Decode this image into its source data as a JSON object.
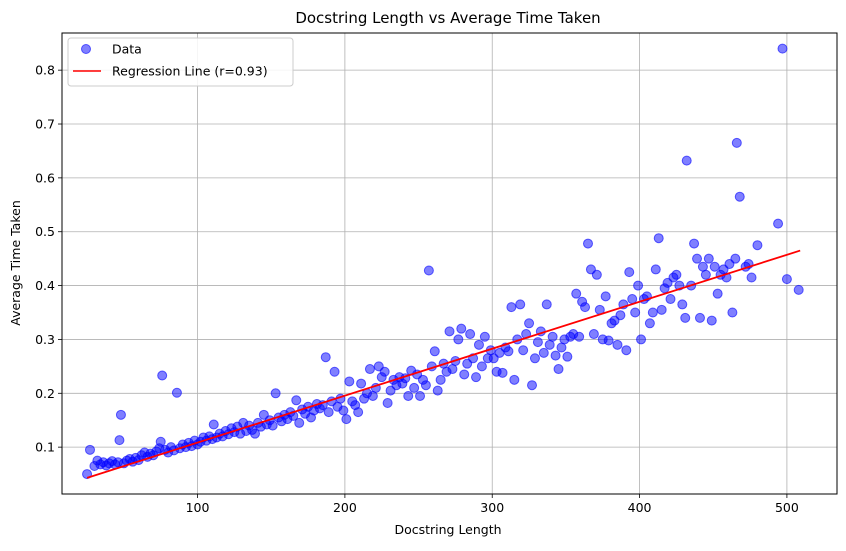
{
  "chart_data": {
    "type": "scatter",
    "title": "Docstring Length vs Average Time Taken",
    "xlabel": "Docstring Length",
    "ylabel": "Average Time Taken",
    "xlim": [
      8,
      534
    ],
    "ylim": [
      0.013,
      0.869
    ],
    "xticks": [
      100,
      200,
      300,
      400,
      500
    ],
    "yticks": [
      0.1,
      0.2,
      0.3,
      0.4,
      0.5,
      0.6,
      0.7,
      0.8
    ],
    "grid": true,
    "legend_position": "top-left",
    "colors": {
      "points": "#0000ff",
      "line": "#ff0000"
    },
    "series": [
      {
        "name": "Data",
        "kind": "scatter",
        "points": [
          [
            25,
            0.05
          ],
          [
            27,
            0.095
          ],
          [
            30,
            0.065
          ],
          [
            32,
            0.075
          ],
          [
            34,
            0.068
          ],
          [
            36,
            0.072
          ],
          [
            38,
            0.066
          ],
          [
            40,
            0.07
          ],
          [
            42,
            0.074
          ],
          [
            44,
            0.068
          ],
          [
            46,
            0.072
          ],
          [
            47,
            0.113
          ],
          [
            48,
            0.16
          ],
          [
            50,
            0.07
          ],
          [
            52,
            0.075
          ],
          [
            54,
            0.078
          ],
          [
            56,
            0.073
          ],
          [
            58,
            0.08
          ],
          [
            60,
            0.076
          ],
          [
            62,
            0.085
          ],
          [
            64,
            0.09
          ],
          [
            66,
            0.082
          ],
          [
            68,
            0.088
          ],
          [
            70,
            0.085
          ],
          [
            72,
            0.092
          ],
          [
            74,
            0.098
          ],
          [
            75,
            0.11
          ],
          [
            76,
            0.233
          ],
          [
            78,
            0.095
          ],
          [
            80,
            0.09
          ],
          [
            82,
            0.1
          ],
          [
            84,
            0.094
          ],
          [
            86,
            0.201
          ],
          [
            88,
            0.098
          ],
          [
            90,
            0.105
          ],
          [
            92,
            0.1
          ],
          [
            94,
            0.108
          ],
          [
            96,
            0.102
          ],
          [
            98,
            0.112
          ],
          [
            100,
            0.105
          ],
          [
            102,
            0.11
          ],
          [
            104,
            0.118
          ],
          [
            106,
            0.112
          ],
          [
            108,
            0.12
          ],
          [
            110,
            0.115
          ],
          [
            111,
            0.142
          ],
          [
            113,
            0.118
          ],
          [
            115,
            0.125
          ],
          [
            117,
            0.12
          ],
          [
            119,
            0.13
          ],
          [
            121,
            0.124
          ],
          [
            123,
            0.135
          ],
          [
            125,
            0.128
          ],
          [
            127,
            0.138
          ],
          [
            129,
            0.125
          ],
          [
            131,
            0.145
          ],
          [
            133,
            0.13
          ],
          [
            135,
            0.14
          ],
          [
            137,
            0.132
          ],
          [
            139,
            0.125
          ],
          [
            141,
            0.145
          ],
          [
            143,
            0.138
          ],
          [
            145,
            0.16
          ],
          [
            147,
            0.142
          ],
          [
            149,
            0.15
          ],
          [
            151,
            0.14
          ],
          [
            153,
            0.2
          ],
          [
            155,
            0.155
          ],
          [
            157,
            0.148
          ],
          [
            159,
            0.16
          ],
          [
            161,
            0.152
          ],
          [
            163,
            0.165
          ],
          [
            165,
            0.158
          ],
          [
            167,
            0.187
          ],
          [
            169,
            0.145
          ],
          [
            171,
            0.17
          ],
          [
            173,
            0.162
          ],
          [
            175,
            0.175
          ],
          [
            177,
            0.155
          ],
          [
            179,
            0.168
          ],
          [
            181,
            0.18
          ],
          [
            183,
            0.172
          ],
          [
            185,
            0.178
          ],
          [
            187,
            0.267
          ],
          [
            189,
            0.165
          ],
          [
            191,
            0.185
          ],
          [
            193,
            0.24
          ],
          [
            195,
            0.175
          ],
          [
            197,
            0.19
          ],
          [
            199,
            0.168
          ],
          [
            201,
            0.152
          ],
          [
            203,
            0.222
          ],
          [
            205,
            0.185
          ],
          [
            207,
            0.178
          ],
          [
            209,
            0.165
          ],
          [
            211,
            0.218
          ],
          [
            213,
            0.19
          ],
          [
            215,
            0.2
          ],
          [
            217,
            0.245
          ],
          [
            219,
            0.195
          ],
          [
            221,
            0.21
          ],
          [
            223,
            0.25
          ],
          [
            225,
            0.23
          ],
          [
            227,
            0.24
          ],
          [
            229,
            0.182
          ],
          [
            231,
            0.205
          ],
          [
            233,
            0.225
          ],
          [
            235,
            0.215
          ],
          [
            237,
            0.23
          ],
          [
            239,
            0.218
          ],
          [
            241,
            0.228
          ],
          [
            243,
            0.195
          ],
          [
            245,
            0.242
          ],
          [
            247,
            0.21
          ],
          [
            249,
            0.235
          ],
          [
            251,
            0.195
          ],
          [
            253,
            0.225
          ],
          [
            255,
            0.215
          ],
          [
            257,
            0.428
          ],
          [
            259,
            0.25
          ],
          [
            261,
            0.278
          ],
          [
            263,
            0.205
          ],
          [
            265,
            0.225
          ],
          [
            267,
            0.255
          ],
          [
            269,
            0.24
          ],
          [
            271,
            0.315
          ],
          [
            273,
            0.245
          ],
          [
            275,
            0.26
          ],
          [
            277,
            0.3
          ],
          [
            279,
            0.32
          ],
          [
            281,
            0.235
          ],
          [
            283,
            0.255
          ],
          [
            285,
            0.31
          ],
          [
            287,
            0.265
          ],
          [
            289,
            0.23
          ],
          [
            291,
            0.29
          ],
          [
            293,
            0.25
          ],
          [
            295,
            0.305
          ],
          [
            297,
            0.265
          ],
          [
            299,
            0.28
          ],
          [
            301,
            0.265
          ],
          [
            303,
            0.24
          ],
          [
            305,
            0.275
          ],
          [
            307,
            0.238
          ],
          [
            309,
            0.285
          ],
          [
            311,
            0.278
          ],
          [
            313,
            0.36
          ],
          [
            315,
            0.225
          ],
          [
            317,
            0.3
          ],
          [
            319,
            0.365
          ],
          [
            321,
            0.28
          ],
          [
            323,
            0.31
          ],
          [
            325,
            0.33
          ],
          [
            327,
            0.215
          ],
          [
            329,
            0.265
          ],
          [
            331,
            0.295
          ],
          [
            333,
            0.315
          ],
          [
            335,
            0.275
          ],
          [
            337,
            0.365
          ],
          [
            339,
            0.29
          ],
          [
            341,
            0.305
          ],
          [
            343,
            0.27
          ],
          [
            345,
            0.245
          ],
          [
            347,
            0.285
          ],
          [
            349,
            0.3
          ],
          [
            351,
            0.268
          ],
          [
            353,
            0.305
          ],
          [
            355,
            0.31
          ],
          [
            357,
            0.385
          ],
          [
            359,
            0.305
          ],
          [
            361,
            0.37
          ],
          [
            363,
            0.36
          ],
          [
            365,
            0.478
          ],
          [
            367,
            0.43
          ],
          [
            369,
            0.31
          ],
          [
            371,
            0.42
          ],
          [
            373,
            0.355
          ],
          [
            375,
            0.3
          ],
          [
            377,
            0.38
          ],
          [
            379,
            0.298
          ],
          [
            381,
            0.33
          ],
          [
            383,
            0.335
          ],
          [
            385,
            0.29
          ],
          [
            387,
            0.345
          ],
          [
            389,
            0.365
          ],
          [
            391,
            0.28
          ],
          [
            393,
            0.425
          ],
          [
            395,
            0.375
          ],
          [
            397,
            0.35
          ],
          [
            399,
            0.4
          ],
          [
            401,
            0.3
          ],
          [
            403,
            0.375
          ],
          [
            405,
            0.38
          ],
          [
            407,
            0.33
          ],
          [
            409,
            0.35
          ],
          [
            411,
            0.43
          ],
          [
            413,
            0.488
          ],
          [
            415,
            0.355
          ],
          [
            417,
            0.395
          ],
          [
            419,
            0.405
          ],
          [
            421,
            0.375
          ],
          [
            423,
            0.415
          ],
          [
            425,
            0.42
          ],
          [
            427,
            0.4
          ],
          [
            429,
            0.365
          ],
          [
            431,
            0.34
          ],
          [
            432,
            0.632
          ],
          [
            435,
            0.4
          ],
          [
            437,
            0.478
          ],
          [
            439,
            0.45
          ],
          [
            441,
            0.34
          ],
          [
            443,
            0.435
          ],
          [
            445,
            0.42
          ],
          [
            447,
            0.45
          ],
          [
            449,
            0.335
          ],
          [
            451,
            0.435
          ],
          [
            453,
            0.385
          ],
          [
            455,
            0.42
          ],
          [
            457,
            0.43
          ],
          [
            459,
            0.415
          ],
          [
            461,
            0.44
          ],
          [
            463,
            0.35
          ],
          [
            465,
            0.45
          ],
          [
            466,
            0.665
          ],
          [
            468,
            0.565
          ],
          [
            472,
            0.435
          ],
          [
            474,
            0.44
          ],
          [
            476,
            0.415
          ],
          [
            480,
            0.475
          ],
          [
            494,
            0.515
          ],
          [
            497,
            0.84
          ],
          [
            500,
            0.412
          ],
          [
            508,
            0.392
          ]
        ]
      },
      {
        "name": "Regression Line (r=0.93)",
        "kind": "line",
        "points": [
          [
            25,
            0.043
          ],
          [
            509,
            0.465
          ]
        ]
      }
    ]
  }
}
